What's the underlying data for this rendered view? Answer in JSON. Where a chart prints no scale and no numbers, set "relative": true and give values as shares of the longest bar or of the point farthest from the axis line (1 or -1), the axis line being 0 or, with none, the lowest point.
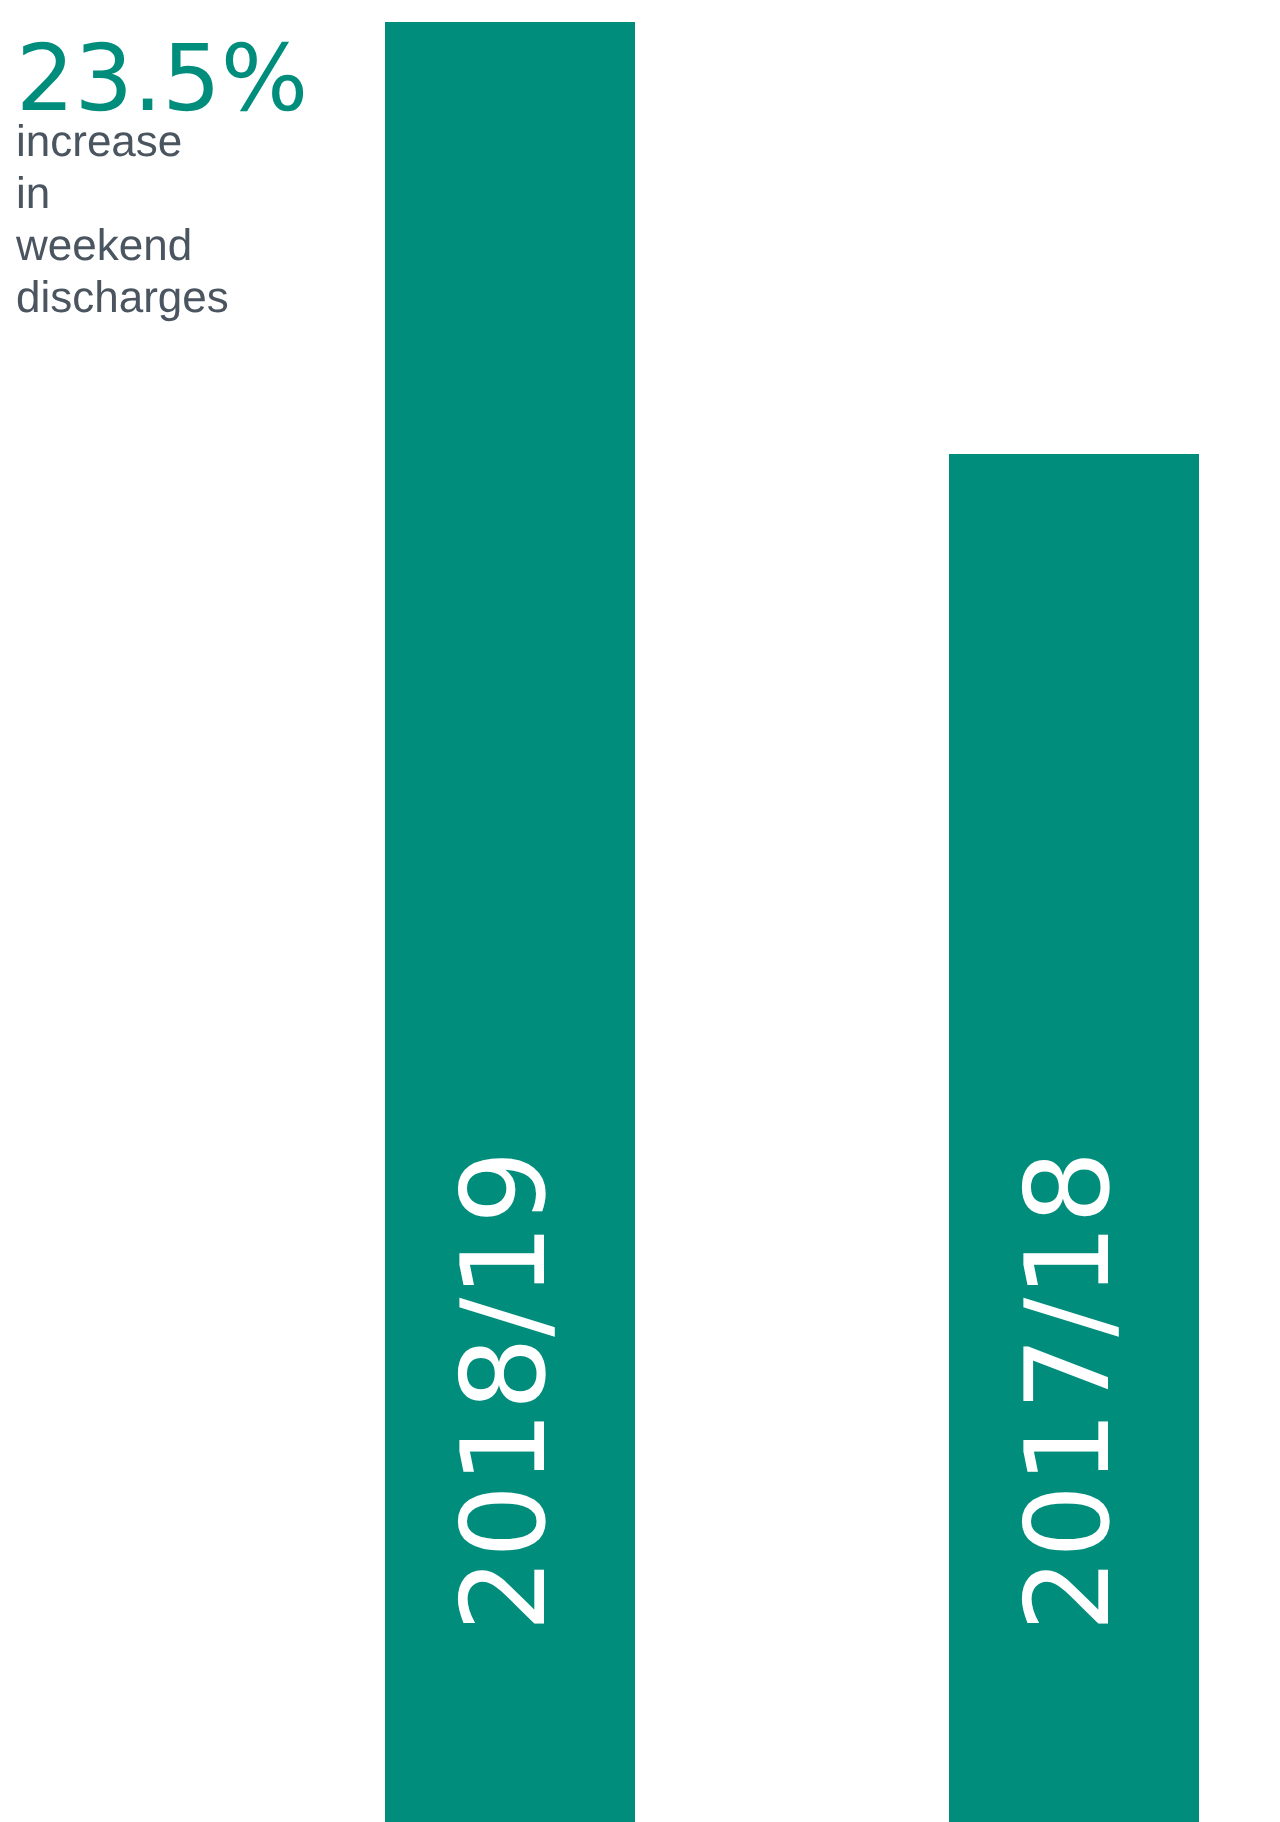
{
  "chart_data": {
    "type": "bar",
    "relative": true,
    "categories": [
      "2018/19",
      "2017/18"
    ],
    "values": [
      1,
      0.76
    ],
    "color": "#008d7c",
    "annotations": [
      "23.5%",
      "increase in weekend discharges"
    ]
  }
}
